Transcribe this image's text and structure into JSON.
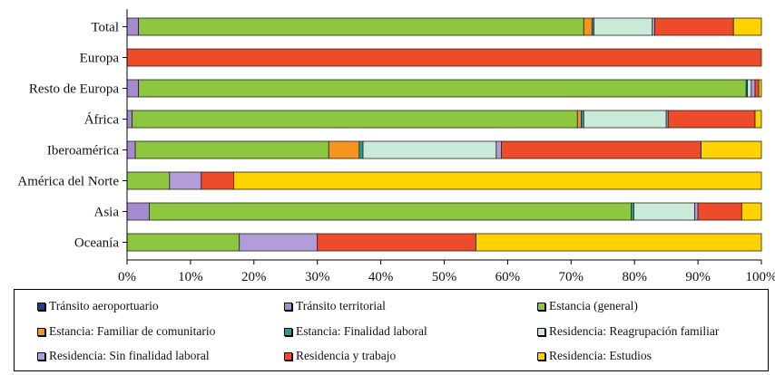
{
  "chart_data": {
    "type": "bar",
    "orientation": "horizontal",
    "stacked": "percent",
    "categories": [
      "Total",
      "Europa",
      "Resto de Europa",
      "África",
      "Iberoamérica",
      "América del Norte",
      "Asia",
      "Oceanía"
    ],
    "series": [
      {
        "name": "Tránsito aeroportuario",
        "color": "#2b3a8c",
        "values": [
          0,
          0,
          0,
          0,
          0,
          0,
          0,
          0
        ]
      },
      {
        "name": "Tránsito territorial",
        "color": "#a78bd0",
        "values": [
          1.8,
          0,
          1.8,
          0.8,
          1.3,
          0,
          3.5,
          0
        ]
      },
      {
        "name": "Estancia (general)",
        "color": "#8dc63f",
        "values": [
          70.2,
          0,
          95.8,
          70.2,
          30.5,
          6.7,
          76.0,
          17.7
        ]
      },
      {
        "name": "Estancia: Familiar de comunitario",
        "color": "#f7941d",
        "values": [
          1.3,
          0,
          0,
          0.6,
          4.8,
          0,
          0,
          0
        ]
      },
      {
        "name": "Estancia: Finalidad laboral",
        "color": "#2a9d8f",
        "values": [
          0.3,
          0,
          0.2,
          0.4,
          0.6,
          0,
          0.4,
          0
        ]
      },
      {
        "name": "Residencia: Reagrupación familiar",
        "color": "#c8ead7",
        "values": [
          9.2,
          0,
          0.6,
          13.0,
          21.0,
          0,
          9.6,
          0
        ]
      },
      {
        "name": "Residencia: Sin finalidad laboral",
        "color": "#b39dd8",
        "values": [
          0.4,
          0,
          0.6,
          0.3,
          0.8,
          5.0,
          0.5,
          12.3
        ]
      },
      {
        "name": "Residencia y trabajo",
        "color": "#ee4b2b",
        "values": [
          12.4,
          100,
          0.6,
          13.7,
          31.5,
          5.1,
          6.9,
          25.0
        ]
      },
      {
        "name": "Residencia: Estudios",
        "color": "#ffd200",
        "values": [
          4.4,
          0,
          0.4,
          1.0,
          9.5,
          83.2,
          3.1,
          45.0
        ]
      }
    ],
    "xlim": [
      0,
      100
    ],
    "xticks": [
      "0%",
      "10%",
      "20%",
      "30%",
      "40%",
      "50%",
      "60%",
      "70%",
      "80%",
      "90%",
      "100%"
    ],
    "legend_position": "bottom",
    "grid": false
  }
}
